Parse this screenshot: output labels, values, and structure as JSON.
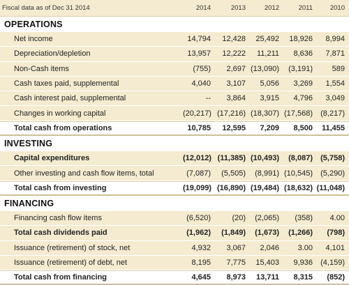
{
  "header": {
    "title": "Fiscal data as of Dec 31 2014",
    "years": [
      "2014",
      "2013",
      "2012",
      "2011",
      "2010"
    ]
  },
  "sections": [
    {
      "title": "OPERATIONS",
      "rows": [
        {
          "label": "Net income",
          "values": [
            "14,794",
            "12,428",
            "25,492",
            "18,926",
            "8,994"
          ],
          "kind": "item"
        },
        {
          "label": "Depreciation/depletion",
          "values": [
            "13,957",
            "12,222",
            "11,211",
            "8,636",
            "7,871"
          ],
          "kind": "item"
        },
        {
          "label": "Non-Cash items",
          "values": [
            "(755)",
            "2,697",
            "(13,090)",
            "(3,191)",
            "589"
          ],
          "kind": "item"
        },
        {
          "label": "Cash taxes paid, supplemental",
          "values": [
            "4,040",
            "3,107",
            "5,056",
            "3,269",
            "1,554"
          ],
          "kind": "item"
        },
        {
          "label": "Cash interest paid, supplemental",
          "values": [
            "--",
            "3,864",
            "3,915",
            "4,796",
            "3,049"
          ],
          "kind": "item"
        },
        {
          "label": "Changes in working capital",
          "values": [
            "(20,217)",
            "(17,216)",
            "(18,307)",
            "(17,568)",
            "(8,217)"
          ],
          "kind": "item"
        },
        {
          "label": "Total cash from operations",
          "values": [
            "10,785",
            "12,595",
            "7,209",
            "8,500",
            "11,455"
          ],
          "kind": "total"
        }
      ]
    },
    {
      "title": "INVESTING",
      "rows": [
        {
          "label": "Capital expenditures",
          "values": [
            "(12,012)",
            "(11,385)",
            "(10,493)",
            "(8,087)",
            "(5,758)"
          ],
          "kind": "item-bold"
        },
        {
          "label": "Other investing and cash flow items, total",
          "values": [
            "(7,087)",
            "(5,505)",
            "(8,991)",
            "(10,545)",
            "(5,290)"
          ],
          "kind": "item"
        },
        {
          "label": "Total cash from investing",
          "values": [
            "(19,099)",
            "(16,890)",
            "(19,484)",
            "(18,632)",
            "(11,048)"
          ],
          "kind": "total"
        }
      ]
    },
    {
      "title": "FINANCING",
      "rows": [
        {
          "label": "Financing cash flow items",
          "values": [
            "(6,520)",
            "(20)",
            "(2,065)",
            "(358)",
            "4.00"
          ],
          "kind": "item"
        },
        {
          "label": "Total cash dividends paid",
          "values": [
            "(1,962)",
            "(1,849)",
            "(1,673)",
            "(1,266)",
            "(798)"
          ],
          "kind": "item-bold"
        },
        {
          "label": "Issuance (retirement) of stock, net",
          "values": [
            "4,932",
            "3,067",
            "2,046",
            "3.00",
            "4,101"
          ],
          "kind": "item"
        },
        {
          "label": "Issuance (retirement) of debt, net",
          "values": [
            "8,195",
            "7,775",
            "15,403",
            "9,936",
            "(4,159)"
          ],
          "kind": "item"
        },
        {
          "label": "Total cash from financing",
          "values": [
            "4,645",
            "8,973",
            "13,711",
            "8,315",
            "(852)"
          ],
          "kind": "total"
        }
      ]
    }
  ]
}
